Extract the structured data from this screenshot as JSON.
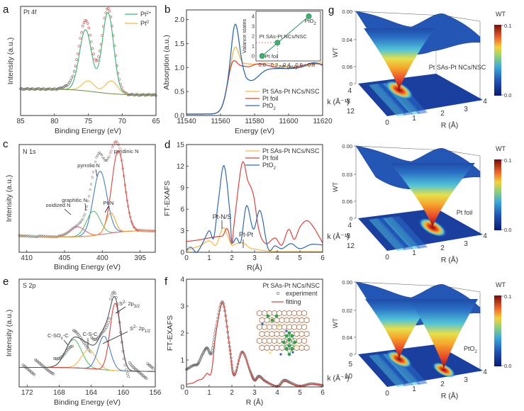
{
  "panel_letters": [
    "a",
    "b",
    "c",
    "d",
    "e",
    "f",
    "g"
  ],
  "colors": {
    "green": "#3cb371",
    "orange": "#f2b84b",
    "red": "#d9433b",
    "blue": "#2f6aa8",
    "pyrrolic": "#4a7fc1",
    "graphitic": "#5cbf6a",
    "oxidized": "#c97a8a",
    "ptn": "#f0a030",
    "fit_envelope": "#555555",
    "data_marker": "#777777"
  },
  "chart_data": [
    {
      "id": "a",
      "type": "line",
      "title": "Pt 4f",
      "xlabel": "Binding Energy (eV)",
      "ylabel": "Intensity (a.u.)",
      "xlim": [
        85,
        65
      ],
      "xticks": [
        85,
        80,
        75,
        70,
        65
      ],
      "legend": [
        "Pt2+",
        "Pt0"
      ],
      "legend_labels": [
        {
          "base": "Pt",
          "sup": "2+"
        },
        {
          "base": "Pt",
          "sup": "0"
        }
      ],
      "legend_position": "top-right",
      "series": [
        {
          "name": "Pt2+",
          "peaks": [
            {
              "center": 75.4,
              "height": 0.72,
              "width": 0.9
            },
            {
              "center": 72.1,
              "height": 0.95,
              "width": 0.85
            }
          ]
        },
        {
          "name": "Pt0",
          "peaks": [
            {
              "center": 75.0,
              "height": 0.12,
              "width": 0.9
            },
            {
              "center": 71.6,
              "height": 0.15,
              "width": 0.9
            }
          ]
        },
        {
          "name": "experiment",
          "peaks": [
            {
              "center": 75.4,
              "height": 0.83,
              "width": 0.95
            },
            {
              "center": 72.1,
              "height": 1.0,
              "width": 0.9
            }
          ]
        }
      ]
    },
    {
      "id": "b",
      "type": "line",
      "xlabel": "Energy (eV)",
      "ylabel": "Absorption (a.u.)",
      "xlim": [
        11540,
        11620
      ],
      "ylim": [
        0,
        2.2
      ],
      "xticks": [
        11540,
        11560,
        11580,
        11600,
        11620
      ],
      "yticks": [
        0.0,
        0.5,
        1.0,
        1.5,
        2.0
      ],
      "ytick_labels": [
        "0.0",
        "0.5",
        "1.0",
        "1.5",
        "2.0"
      ],
      "legend": [
        "Pt SAs-Pt NCs/NSC",
        "Pt foil",
        "PtO2"
      ],
      "legend_position": "bottom-right",
      "series": [
        {
          "name": "Pt SAs-Pt NCs/NSC",
          "white_line_peak": {
            "x": 11568.5,
            "y": 1.45
          },
          "post_edge": 1.0
        },
        {
          "name": "Pt foil",
          "white_line_peak": {
            "x": 11567,
            "y": 1.2
          },
          "post_edge": 1.0
        },
        {
          "name": "PtO2",
          "white_line_peak": {
            "x": 11568.5,
            "y": 1.95
          },
          "post_edge": 1.0
        }
      ],
      "inset": {
        "type": "scatter",
        "xlabel": "ΔE (eV)",
        "ylabel": "Valance states",
        "xlim": [
          -0.1,
          0.95
        ],
        "ylim": [
          -0.5,
          4.5
        ],
        "xticks": [
          0.0,
          0.2,
          0.4,
          0.6,
          0.8
        ],
        "xtick_labels": [
          "0.0",
          "0.2",
          "0.4",
          "0.6",
          "0.8"
        ],
        "yticks": [
          0,
          1,
          2,
          3,
          4
        ],
        "points": [
          {
            "label": "Pt foil",
            "x": 0.0,
            "y": 0.0
          },
          {
            "label": "Pt SAs-Pt NCs/NSC",
            "x": 0.25,
            "y": 1.35
          },
          {
            "label": "PtO2",
            "x": 0.76,
            "y": 4.0
          }
        ]
      }
    },
    {
      "id": "c",
      "type": "line",
      "title": "N 1s",
      "xlabel": "Binding Energy (eV)",
      "ylabel": "Intensity (a.u.)",
      "xlim": [
        411,
        393
      ],
      "xticks": [
        410,
        405,
        400,
        395
      ],
      "annotations": [
        "pyridinic N",
        "pyrrolic N",
        "graphitic N",
        "oxidized N",
        "Pt-N"
      ],
      "series": [
        {
          "name": "pyridinic N",
          "center": 397.9,
          "height": 1.0
        },
        {
          "name": "pyrrolic N",
          "center": 400.3,
          "height": 0.78
        },
        {
          "name": "graphitic N",
          "center": 401.2,
          "height": 0.3
        },
        {
          "name": "oxidized N",
          "center": 403.3,
          "height": 0.12
        },
        {
          "name": "Pt-N",
          "center": 398.9,
          "height": 0.25
        }
      ]
    },
    {
      "id": "d",
      "type": "line",
      "xlabel": "R(Å)",
      "ylabel": "FT-EXAFS",
      "xlim": [
        0,
        6
      ],
      "ylim": [
        0,
        15
      ],
      "xticks": [
        0,
        1,
        2,
        3,
        4,
        5,
        6
      ],
      "yticks": [
        0,
        3,
        6,
        9,
        12,
        15
      ],
      "legend": [
        "Pt SAs-Pt NCs/NSC",
        "Pt foil",
        "PtO2"
      ],
      "legend_position": "top-right",
      "annotations": [
        "Pt-N/S",
        "Pt-Pt"
      ],
      "series": [
        {
          "name": "Pt SAs-Pt NCs/NSC",
          "x": [
            0,
            0.3,
            0.6,
            1.0,
            1.3,
            1.6,
            1.8,
            2.0,
            2.2,
            2.5,
            2.8,
            3.1,
            3.5,
            4.0,
            5.0,
            6.0
          ],
          "y": [
            0.2,
            0.6,
            0.9,
            1.6,
            1.0,
            3.4,
            2.4,
            1.0,
            1.2,
            1.3,
            0.6,
            0.4,
            0.2,
            0.1,
            0.1,
            0.1
          ]
        },
        {
          "name": "Pt foil",
          "x": [
            0,
            0.5,
            1.0,
            1.4,
            1.6,
            1.8,
            2.0,
            2.1,
            2.45,
            2.7,
            2.95,
            3.2,
            3.5,
            3.9,
            4.2,
            4.5,
            4.75,
            5.0,
            5.3,
            5.6,
            6.0
          ],
          "y": [
            1.5,
            1.7,
            2.0,
            2.2,
            2.3,
            3.3,
            1.2,
            4.0,
            12.4,
            10.0,
            8.0,
            3.0,
            1.2,
            2.0,
            1.0,
            3.2,
            1.8,
            3.5,
            4.4,
            3.5,
            1.3
          ]
        },
        {
          "name": "PtO2",
          "x": [
            0,
            0.2,
            0.45,
            0.7,
            1.0,
            1.2,
            1.4,
            1.65,
            1.9,
            2.0,
            2.2,
            2.4,
            2.65,
            2.95,
            3.25,
            3.6,
            3.9,
            4.2,
            4.6,
            5.0,
            5.5,
            6.0
          ],
          "y": [
            0.3,
            0.7,
            0.0,
            1.2,
            3.0,
            2.0,
            7.0,
            12.1,
            6.0,
            1.5,
            2.0,
            1.5,
            6.5,
            3.2,
            5.8,
            0.5,
            0.9,
            0.5,
            1.2,
            0.5,
            1.1,
            1.0
          ]
        }
      ]
    },
    {
      "id": "e",
      "type": "line",
      "title": "S 2p",
      "xlabel": "Binding Energy (eV)",
      "ylabel": "Intensity (a.u.)",
      "xlim": [
        173,
        156
      ],
      "xticks": [
        172,
        168,
        164,
        160,
        156
      ],
      "annotations": [
        "C-SOx-C",
        "C-S-C",
        "S2- 2p3/2",
        "S2- 2p1/2"
      ],
      "annotation_labels": {
        "csox": {
          "pre": "C-SO",
          "sub": "x",
          "post": "-C"
        },
        "csc": "C-S-C",
        "s32": {
          "base": "S",
          "sup": "2-",
          "mid": " 2p",
          "sub": "3/2"
        },
        "s12": {
          "base": "S",
          "sup": "2-",
          "mid": " 2p",
          "sub": "1/2"
        }
      },
      "series": [
        {
          "name": "C-SOx-C",
          "center": 166.2,
          "height": 0.42
        },
        {
          "name": "C-S-C",
          "center": 164.3,
          "height": 0.28
        },
        {
          "name": "S2- 2p1/2",
          "center": 162.4,
          "height": 0.5
        },
        {
          "name": "S2- 2p3/2",
          "center": 161.0,
          "height": 1.0
        }
      ]
    },
    {
      "id": "f",
      "type": "line",
      "xlabel": "R (Å)",
      "ylabel": "FT-EXAFS",
      "xlim": [
        0,
        6
      ],
      "ylim": [
        0,
        4
      ],
      "xticks": [
        0,
        1,
        2,
        3,
        4,
        5,
        6
      ],
      "yticks": [
        0,
        1,
        2,
        3,
        4
      ],
      "legend_title": "Pt SAs-Pt NCs/NSC",
      "legend": [
        "experiment",
        "fitting"
      ],
      "legend_position": "top-right",
      "series": [
        {
          "name": "experiment",
          "x": [
            0,
            0.3,
            0.5,
            0.7,
            0.9,
            1.1,
            1.3,
            1.6,
            1.9,
            2.1,
            2.45,
            2.8,
            3.0,
            3.2,
            3.5,
            4.0,
            4.3,
            4.6,
            5.0,
            5.5,
            6.0
          ],
          "y": [
            0.65,
            0.8,
            0.85,
            1.2,
            1.45,
            1.25,
            2.2,
            3.15,
            1.5,
            0.45,
            1.3,
            0.6,
            0.25,
            0.4,
            0.2,
            0.02,
            0.25,
            0.15,
            0.03,
            0.12,
            0.05
          ]
        },
        {
          "name": "fitting",
          "x": [
            0,
            0.3,
            0.5,
            0.7,
            0.9,
            1.1,
            1.3,
            1.6,
            1.9,
            2.1,
            2.45,
            2.8,
            3.0,
            3.2,
            3.5,
            4.0,
            4.3,
            4.6,
            5.0,
            5.5,
            6.0
          ],
          "y": [
            0.1,
            0.15,
            0.25,
            0.3,
            0.5,
            0.55,
            2.0,
            3.12,
            1.5,
            0.4,
            1.3,
            0.6,
            0.22,
            0.35,
            0.2,
            0.02,
            0.2,
            0.12,
            0.03,
            0.1,
            0.08
          ]
        }
      ]
    },
    {
      "id": "g",
      "type": "heatmap",
      "subplots": [
        {
          "label": "Pt SAs-Pt NCs/NSC",
          "zlabel": "WT",
          "zticks": [
            "0.00",
            "0.04",
            "0.08",
            "0"
          ],
          "kticks": [
            "4",
            "8",
            "12"
          ],
          "rticks": [
            "0",
            "1",
            "2",
            "3",
            "4"
          ],
          "colorbar": [
            "0.1",
            "0.0"
          ],
          "colorbar_title": "WT",
          "peaks": [
            {
              "R": 1.6,
              "k": 6
            }
          ]
        },
        {
          "label": "Pt foil",
          "zlabel": "WT",
          "zticks": [
            "0.00",
            "0.03",
            "0.06",
            "0"
          ],
          "kticks": [
            "4",
            "8",
            "12"
          ],
          "rticks": [
            "0",
            "1",
            "2",
            "3",
            "4"
          ],
          "colorbar": [
            "0.1",
            "0.0"
          ],
          "colorbar_title": "WT",
          "peaks": [
            {
              "R": 2.5,
              "k": 9
            }
          ]
        },
        {
          "label": "PtO2",
          "label_parts": {
            "base": "PtO",
            "sub": "2"
          },
          "zlabel": "WT",
          "zticks": [
            "0.00",
            "0.02",
            "0.04",
            "0"
          ],
          "kticks": [
            "5",
            "10"
          ],
          "rticks": [
            "0",
            "1",
            "2",
            "3",
            "4"
          ],
          "colorbar": [
            "0.1",
            "0.0"
          ],
          "colorbar_title": "WT",
          "peaks": [
            {
              "R": 1.6,
              "k": 8
            },
            {
              "R": 3.1,
              "k": 10
            }
          ]
        }
      ],
      "r_axis_label": "R (Å)",
      "k_axis_label": "k (Å⁻¹)"
    }
  ]
}
